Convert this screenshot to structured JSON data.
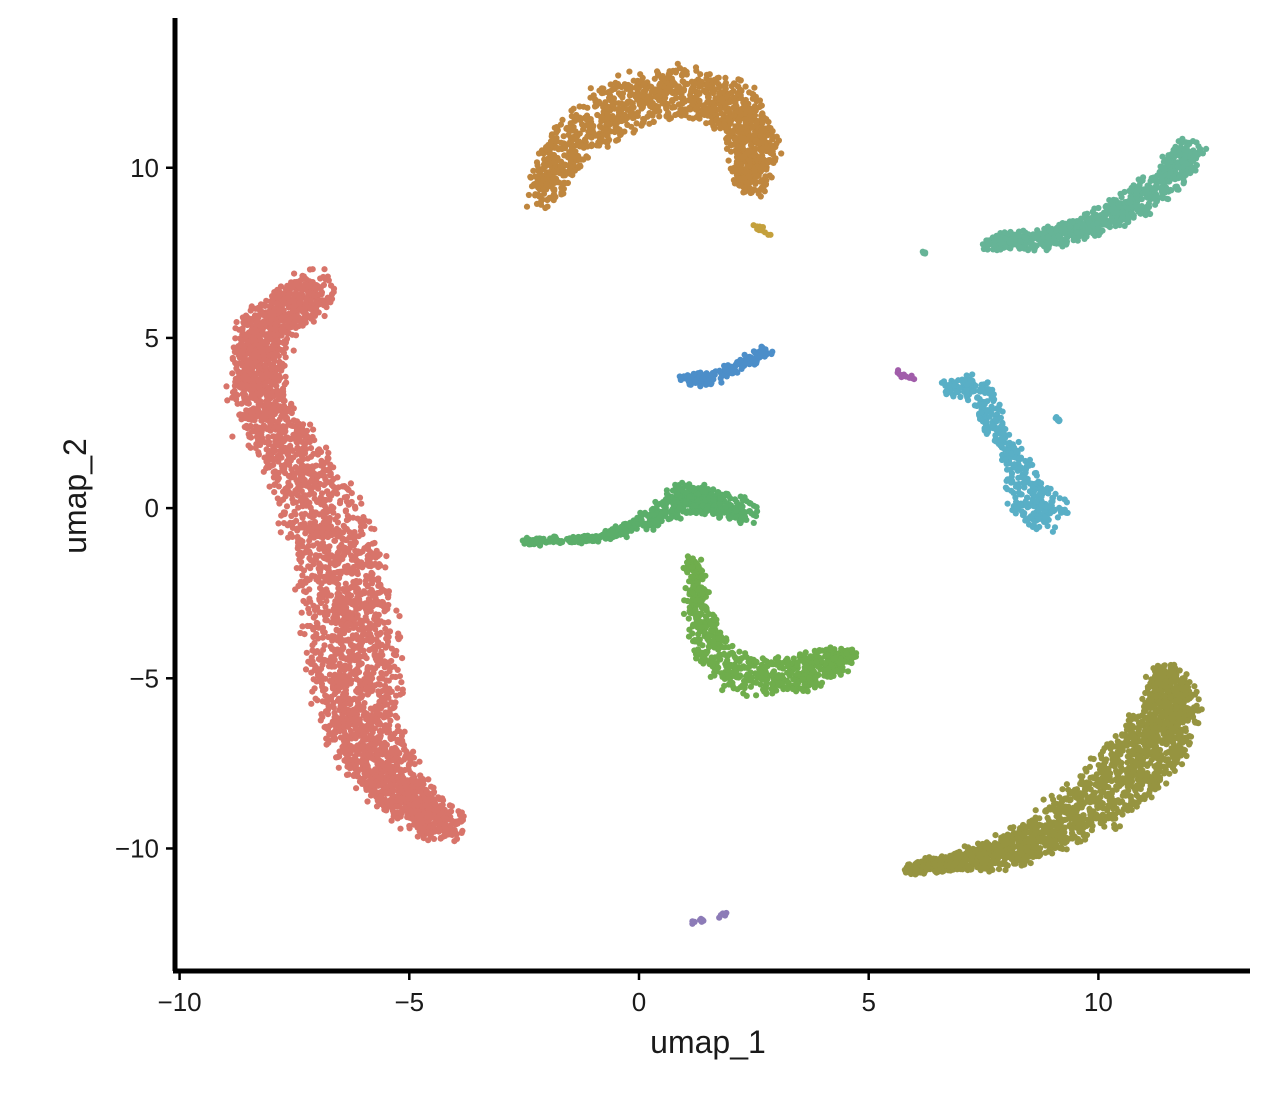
{
  "chart_data": {
    "type": "scatter",
    "xlabel": "umap_1",
    "ylabel": "umap_2",
    "xlim": [
      -10.1,
      13.3
    ],
    "ylim": [
      -13.6,
      14.4
    ],
    "x_ticks": [
      -10,
      -5,
      0,
      5,
      10
    ],
    "x_tick_labels": [
      "−10",
      "−5",
      "0",
      "5",
      "10"
    ],
    "y_ticks": [
      -10,
      -5,
      0,
      5,
      10
    ],
    "y_tick_labels": [
      "−10",
      "−5",
      "0",
      "5",
      "10"
    ],
    "grid": false,
    "legend": "none",
    "clusters": [
      {
        "color": "#D8746A",
        "n": 3200,
        "spread": 0.35,
        "path": [
          [
            -7.1,
            6.4
          ],
          [
            -8.2,
            5.2
          ],
          [
            -8.3,
            3.2
          ],
          [
            -7.4,
            1.2
          ],
          [
            -6.6,
            -1.0
          ],
          [
            -6.3,
            -3.2
          ],
          [
            -6.2,
            -5.2
          ],
          [
            -5.9,
            -7.2
          ],
          [
            -5.1,
            -8.5
          ],
          [
            -4.2,
            -9.4
          ]
        ],
        "widths": [
          0.6,
          0.55,
          0.6,
          0.8,
          1.0,
          1.05,
          1.0,
          0.8,
          0.65,
          0.45
        ]
      },
      {
        "color": "#BF863E",
        "n": 1300,
        "spread": 0.25,
        "path": [
          [
            -2.1,
            9.1
          ],
          [
            -1.6,
            10.6
          ],
          [
            -0.4,
            11.9
          ],
          [
            1.0,
            12.3
          ],
          [
            2.1,
            11.8
          ],
          [
            2.5,
            10.6
          ],
          [
            2.4,
            9.4
          ]
        ],
        "widths": [
          0.35,
          0.6,
          0.8,
          0.8,
          0.7,
          0.55,
          0.35
        ]
      },
      {
        "color": "#C4A03C",
        "n": 10,
        "spread": 0.05,
        "path": [
          [
            2.5,
            8.4
          ],
          [
            2.8,
            8.0
          ]
        ],
        "widths": [
          0.08,
          0.08
        ]
      },
      {
        "color": "#66B497",
        "n": 750,
        "spread": 0.2,
        "path": [
          [
            7.6,
            7.8
          ],
          [
            8.9,
            7.9
          ],
          [
            10.0,
            8.4
          ],
          [
            10.9,
            9.0
          ],
          [
            11.6,
            9.8
          ],
          [
            12.0,
            10.6
          ]
        ],
        "widths": [
          0.22,
          0.3,
          0.35,
          0.4,
          0.4,
          0.3
        ]
      },
      {
        "color": "#66B497",
        "n": 4,
        "spread": 0.04,
        "path": [
          [
            6.2,
            7.5
          ]
        ],
        "widths": [
          0.05
        ]
      },
      {
        "color": "#4C8EC9",
        "n": 160,
        "spread": 0.12,
        "path": [
          [
            1.0,
            3.8
          ],
          [
            1.6,
            3.8
          ],
          [
            2.3,
            4.3
          ],
          [
            2.8,
            4.6
          ]
        ],
        "widths": [
          0.18,
          0.2,
          0.18,
          0.15
        ]
      },
      {
        "color": "#A15DAA",
        "n": 14,
        "spread": 0.05,
        "path": [
          [
            5.6,
            4.0
          ],
          [
            6.0,
            3.8
          ]
        ],
        "widths": [
          0.08,
          0.08
        ]
      },
      {
        "color": "#59AFC6",
        "n": 430,
        "spread": 0.15,
        "path": [
          [
            6.8,
            3.6
          ],
          [
            7.4,
            3.5
          ],
          [
            7.8,
            2.2
          ],
          [
            8.3,
            1.2
          ],
          [
            8.6,
            0.2
          ],
          [
            8.9,
            -0.2
          ]
        ],
        "widths": [
          0.3,
          0.35,
          0.2,
          0.35,
          0.6,
          0.5
        ]
      },
      {
        "color": "#59AFC6",
        "n": 6,
        "spread": 0.04,
        "path": [
          [
            9.1,
            2.6
          ]
        ],
        "widths": [
          0.07
        ]
      },
      {
        "color": "#5BAE6A",
        "n": 600,
        "spread": 0.15,
        "path": [
          [
            -2.6,
            -1.0
          ],
          [
            -1.0,
            -0.9
          ],
          [
            0.2,
            -0.4
          ],
          [
            1.0,
            0.3
          ],
          [
            1.6,
            0.2
          ],
          [
            2.4,
            -0.2
          ]
        ],
        "widths": [
          0.05,
          0.1,
          0.25,
          0.45,
          0.45,
          0.3
        ]
      },
      {
        "color": "#6FAD4C",
        "n": 700,
        "spread": 0.18,
        "path": [
          [
            1.2,
            -1.5
          ],
          [
            1.3,
            -3.0
          ],
          [
            1.6,
            -4.2
          ],
          [
            2.4,
            -5.0
          ],
          [
            3.3,
            -4.9
          ],
          [
            4.0,
            -4.6
          ],
          [
            4.6,
            -4.3
          ]
        ],
        "widths": [
          0.15,
          0.25,
          0.45,
          0.55,
          0.6,
          0.5,
          0.15
        ]
      },
      {
        "color": "#969440",
        "n": 1900,
        "spread": 0.25,
        "path": [
          [
            5.9,
            -10.6
          ],
          [
            7.4,
            -10.3
          ],
          [
            8.8,
            -9.7
          ],
          [
            10.1,
            -8.5
          ],
          [
            11.0,
            -7.2
          ],
          [
            11.6,
            -6.0
          ],
          [
            11.5,
            -4.8
          ]
        ],
        "widths": [
          0.12,
          0.35,
          0.6,
          0.85,
          0.85,
          0.7,
          0.3
        ]
      },
      {
        "color": "#8C7BB7",
        "n": 14,
        "spread": 0.06,
        "path": [
          [
            1.1,
            -12.2
          ],
          [
            1.6,
            -12.0
          ],
          [
            1.9,
            -11.9
          ]
        ],
        "widths": [
          0.08,
          0.1,
          0.08
        ]
      }
    ]
  }
}
